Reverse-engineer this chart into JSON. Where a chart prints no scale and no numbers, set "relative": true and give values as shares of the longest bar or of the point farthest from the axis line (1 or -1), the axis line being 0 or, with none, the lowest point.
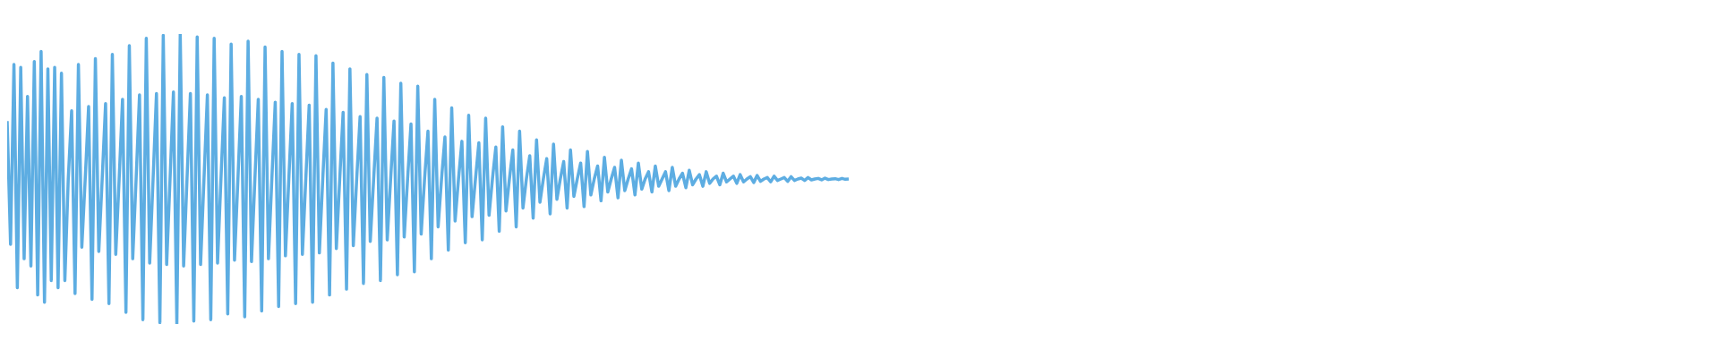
{
  "chart_data": {
    "type": "line",
    "relative": true,
    "categories": [
      null,
      null,
      null,
      null,
      null,
      null,
      null,
      null,
      null,
      null,
      null,
      null,
      null,
      null,
      null,
      null,
      null,
      null,
      null,
      null,
      null,
      null,
      null,
      null,
      null,
      null,
      null,
      null,
      null,
      null,
      null,
      null,
      null,
      null,
      null,
      null,
      null,
      null,
      null,
      null,
      null,
      null,
      null,
      null,
      null,
      null,
      null,
      null,
      null,
      null,
      null,
      null,
      null,
      null,
      null,
      null,
      null,
      null,
      null,
      null,
      null,
      null,
      null,
      null,
      null,
      null,
      null,
      null,
      null,
      null,
      null,
      null,
      null,
      null,
      null,
      null,
      null,
      null,
      null,
      null,
      null,
      null,
      null,
      null,
      null,
      null,
      null,
      null,
      null,
      null,
      null,
      null,
      null,
      null,
      null,
      null,
      null,
      null,
      null,
      null,
      null,
      null,
      null,
      null,
      null,
      null,
      null,
      null,
      null,
      null,
      null,
      null,
      null,
      null,
      null,
      null,
      null,
      null,
      null,
      null,
      null,
      null,
      null,
      null,
      null,
      null,
      null,
      null,
      null,
      null,
      null,
      null,
      null,
      null,
      null,
      null,
      null,
      null,
      null,
      null,
      null,
      null,
      null,
      null,
      null,
      null,
      null,
      null,
      null,
      null,
      null,
      null,
      null,
      null,
      null,
      null,
      null,
      null,
      null,
      null,
      null,
      null,
      null,
      null,
      null,
      null,
      null,
      null,
      null,
      null,
      null,
      null,
      null,
      null,
      null,
      null,
      null,
      null,
      null,
      null,
      null,
      null,
      null,
      null,
      null,
      null,
      null,
      null,
      null,
      null,
      null,
      null,
      null,
      null,
      null,
      null,
      null,
      null,
      null,
      null,
      null,
      null,
      null,
      null,
      null,
      null,
      null,
      null,
      null,
      null,
      null,
      null,
      null,
      null,
      null,
      null,
      null,
      null,
      null,
      null,
      null,
      null,
      null,
      null,
      null,
      null,
      null,
      null,
      null,
      null,
      null,
      null,
      null,
      null,
      null,
      null,
      null,
      null,
      null,
      null,
      null,
      null,
      null,
      null,
      null,
      null,
      null,
      null,
      null
    ],
    "series": [
      {
        "color": "#5dade2",
        "values": [
          0.7,
          0.275,
          0.895,
          0.125,
          0.885,
          0.225,
          0.785,
          0.2,
          0.905,
          0.1,
          0.94,
          0.075,
          0.88,
          0.15,
          0.885,
          0.125,
          0.865,
          0.15,
          0.5,
          0.735,
          0.105,
          0.895,
          0.265,
          0.5,
          0.75,
          0.085,
          0.915,
          0.25,
          0.5,
          0.76,
          0.07,
          0.93,
          0.24,
          0.5,
          0.775,
          0.04,
          0.96,
          0.225,
          0.5,
          0.79,
          0.015,
          0.985,
          0.21,
          0.5,
          0.795,
          0.005,
          0.995,
          0.205,
          0.5,
          0.8,
          0,
          1,
          0.2,
          0.5,
          0.795,
          0.01,
          0.99,
          0.205,
          0.5,
          0.79,
          0.015,
          0.985,
          0.21,
          0.5,
          0.78,
          0.035,
          0.965,
          0.22,
          0.5,
          0.785,
          0.025,
          0.975,
          0.215,
          0.5,
          0.775,
          0.045,
          0.955,
          0.225,
          0.5,
          0.765,
          0.06,
          0.94,
          0.235,
          0.5,
          0.76,
          0.07,
          0.93,
          0.24,
          0.5,
          0.755,
          0.075,
          0.925,
          0.245,
          0.5,
          0.74,
          0.1,
          0.9,
          0.26,
          0.5,
          0.73,
          0.12,
          0.88,
          0.27,
          0.5,
          0.715,
          0.14,
          0.86,
          0.285,
          0.5,
          0.71,
          0.15,
          0.85,
          0.29,
          0.5,
          0.7,
          0.17,
          0.83,
          0.3,
          0.5,
          0.69,
          0.18,
          0.82,
          0.31,
          0.5,
          0.665,
          0.225,
          0.775,
          0.335,
          0.5,
          0.645,
          0.255,
          0.745,
          0.355,
          0.5,
          0.63,
          0.28,
          0.72,
          0.37,
          0.5,
          0.625,
          0.29,
          0.71,
          0.375,
          0.5,
          0.61,
          0.32,
          0.68,
          0.39,
          0.5,
          0.6,
          0.335,
          0.665,
          0.4,
          0.5,
          0.58,
          0.365,
          0.635,
          0.42,
          0.5,
          0.57,
          0.38,
          0.62,
          0.43,
          0.5,
          0.56,
          0.4,
          0.6,
          0.44,
          0.5,
          0.555,
          0.405,
          0.595,
          0.445,
          0.5,
          0.545,
          0.425,
          0.575,
          0.455,
          0.5,
          0.54,
          0.435,
          0.565,
          0.46,
          0.5,
          0.535,
          0.445,
          0.555,
          0.465,
          0.5,
          0.525,
          0.455,
          0.545,
          0.475,
          0.5,
          0.525,
          0.46,
          0.54,
          0.475,
          0.5,
          0.52,
          0.47,
          0.53,
          0.48,
          0.5,
          0.515,
          0.475,
          0.525,
          0.485,
          0.5,
          0.51,
          0.48,
          0.52,
          0.49,
          0.5,
          0.51,
          0.485,
          0.515,
          0.49,
          0.5,
          0.508,
          0.488,
          0.512,
          0.492,
          0.5,
          0.505,
          0.49,
          0.51,
          0.495,
          0.5,
          0.505,
          0.492,
          0.508,
          0.495,
          0.5,
          0.503,
          0.495,
          0.505,
          0.497,
          0.5,
          0.502,
          0.497,
          0.503,
          0.498,
          0.5,
          0.501,
          0.498,
          0.502,
          0.499,
          0.5
        ]
      }
    ]
  }
}
